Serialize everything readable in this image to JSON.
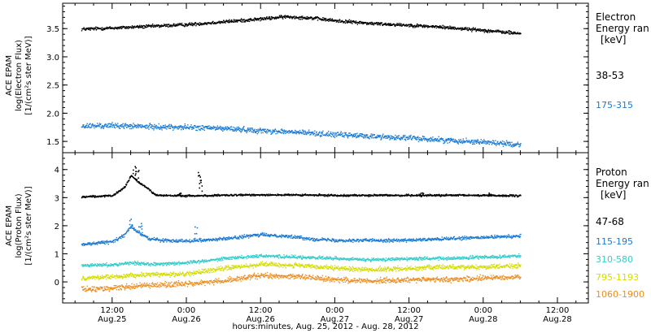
{
  "xaxis": {
    "title": "hours:minutes, Aug. 25, 2012 - Aug. 28, 2012",
    "ticks": [
      {
        "t": 12,
        "time": "12:00",
        "date": "Aug.25"
      },
      {
        "t": 24,
        "time": "0:00",
        "date": "Aug.26"
      },
      {
        "t": 36,
        "time": "12:00",
        "date": "Aug.26"
      },
      {
        "t": 48,
        "time": "0:00",
        "date": "Aug.27"
      },
      {
        "t": 60,
        "time": "12:00",
        "date": "Aug.27"
      },
      {
        "t": 72,
        "time": "0:00",
        "date": "Aug.28"
      },
      {
        "t": 84,
        "time": "12:00",
        "date": "Aug.28"
      }
    ]
  },
  "electron": {
    "ylabel": [
      "ACE EPAM",
      "log(Electron Flux)",
      "[1/(cm²s ster MeV)]"
    ],
    "legend_title": [
      "Electron",
      "Energy ran",
      "[keV]"
    ]
  },
  "proton": {
    "ylabel": [
      "ACE EPAM",
      "log(Proton Flux)",
      "[1/(cm²s ster MeV)]"
    ],
    "legend_title": [
      "Proton",
      "Energy ran",
      "[keV]"
    ]
  },
  "chart_data": [
    {
      "type": "scatter",
      "panel": "electron",
      "xlim": [
        4,
        89
      ],
      "ylim": [
        1.3,
        3.95
      ],
      "yticks": [
        "1.5",
        "2.0",
        "2.5",
        "3.0",
        "3.5"
      ],
      "x_unit": "hours since Aug. 25, 2012 00:00",
      "series": [
        {
          "name": "38-53",
          "color": "#000000",
          "noise": 0.025,
          "points": [
            [
              7,
              3.5
            ],
            [
              12,
              3.52
            ],
            [
              18,
              3.55
            ],
            [
              24,
              3.58
            ],
            [
              30,
              3.63
            ],
            [
              36,
              3.68
            ],
            [
              40,
              3.72
            ],
            [
              44,
              3.7
            ],
            [
              48,
              3.65
            ],
            [
              54,
              3.6
            ],
            [
              60,
              3.57
            ],
            [
              66,
              3.53
            ],
            [
              72,
              3.48
            ],
            [
              78,
              3.42
            ]
          ]
        },
        {
          "name": "175-315",
          "color": "#1a7ad6",
          "noise": 0.04,
          "points": [
            [
              7,
              1.78
            ],
            [
              12,
              1.79
            ],
            [
              18,
              1.77
            ],
            [
              24,
              1.76
            ],
            [
              30,
              1.74
            ],
            [
              36,
              1.7
            ],
            [
              42,
              1.67
            ],
            [
              48,
              1.63
            ],
            [
              54,
              1.6
            ],
            [
              60,
              1.57
            ],
            [
              66,
              1.53
            ],
            [
              72,
              1.5
            ],
            [
              78,
              1.45
            ]
          ]
        }
      ]
    },
    {
      "type": "scatter",
      "panel": "proton",
      "xlim": [
        4,
        89
      ],
      "ylim": [
        -0.75,
        4.6
      ],
      "yticks": [
        "0",
        "1",
        "2",
        "3",
        "4"
      ],
      "x_unit": "hours since Aug. 25, 2012 00:00",
      "series": [
        {
          "name": "47-68",
          "color": "#000000",
          "noise": 0.03,
          "points": [
            [
              7,
              3.05
            ],
            [
              12,
              3.08
            ],
            [
              14,
              3.4
            ],
            [
              15,
              3.8
            ],
            [
              16,
              3.6
            ],
            [
              18,
              3.3
            ],
            [
              19,
              3.1
            ],
            [
              24,
              3.08
            ],
            [
              30,
              3.1
            ],
            [
              36,
              3.12
            ],
            [
              48,
              3.1
            ],
            [
              60,
              3.1
            ],
            [
              72,
              3.1
            ],
            [
              78,
              3.08
            ]
          ],
          "spikes": [
            [
              15.5,
              4.3
            ],
            [
              16,
              4.0
            ],
            [
              23,
              3.2
            ],
            [
              26,
              4.0
            ],
            [
              26.2,
              3.6
            ],
            [
              62,
              3.25
            ],
            [
              73,
              3.2
            ]
          ]
        },
        {
          "name": "115-195",
          "color": "#1a7ad6",
          "noise": 0.05,
          "points": [
            [
              7,
              1.35
            ],
            [
              12,
              1.45
            ],
            [
              14,
              1.7
            ],
            [
              15,
              2.0
            ],
            [
              16,
              1.8
            ],
            [
              18,
              1.55
            ],
            [
              20,
              1.5
            ],
            [
              24,
              1.48
            ],
            [
              30,
              1.55
            ],
            [
              36,
              1.7
            ],
            [
              40,
              1.65
            ],
            [
              44,
              1.55
            ],
            [
              48,
              1.5
            ],
            [
              54,
              1.5
            ],
            [
              60,
              1.5
            ],
            [
              66,
              1.55
            ],
            [
              72,
              1.6
            ],
            [
              78,
              1.65
            ]
          ],
          "spikes": [
            [
              15,
              2.3
            ],
            [
              16.5,
              2.1
            ],
            [
              25.5,
              2.0
            ]
          ]
        },
        {
          "name": "310-580",
          "color": "#33cccc",
          "noise": 0.05,
          "points": [
            [
              7,
              0.6
            ],
            [
              12,
              0.63
            ],
            [
              15,
              0.7
            ],
            [
              18,
              0.65
            ],
            [
              24,
              0.7
            ],
            [
              30,
              0.85
            ],
            [
              36,
              0.95
            ],
            [
              42,
              0.9
            ],
            [
              48,
              0.85
            ],
            [
              54,
              0.8
            ],
            [
              60,
              0.85
            ],
            [
              66,
              0.85
            ],
            [
              72,
              0.9
            ],
            [
              78,
              0.95
            ]
          ]
        },
        {
          "name": "795-1193",
          "color": "#d4dc00",
          "noise": 0.07,
          "points": [
            [
              7,
              0.15
            ],
            [
              12,
              0.2
            ],
            [
              18,
              0.28
            ],
            [
              24,
              0.3
            ],
            [
              30,
              0.5
            ],
            [
              36,
              0.65
            ],
            [
              42,
              0.6
            ],
            [
              48,
              0.5
            ],
            [
              54,
              0.45
            ],
            [
              60,
              0.5
            ],
            [
              66,
              0.55
            ],
            [
              72,
              0.55
            ],
            [
              78,
              0.6
            ]
          ]
        },
        {
          "name": "1060-1900",
          "color": "#ee8c1e",
          "noise": 0.08,
          "points": [
            [
              7,
              -0.25
            ],
            [
              12,
              -0.2
            ],
            [
              18,
              -0.1
            ],
            [
              24,
              -0.05
            ],
            [
              30,
              0.05
            ],
            [
              36,
              0.25
            ],
            [
              42,
              0.2
            ],
            [
              48,
              0.1
            ],
            [
              54,
              0.05
            ],
            [
              60,
              0.1
            ],
            [
              66,
              0.1
            ],
            [
              72,
              0.15
            ],
            [
              78,
              0.2
            ]
          ]
        }
      ]
    }
  ]
}
